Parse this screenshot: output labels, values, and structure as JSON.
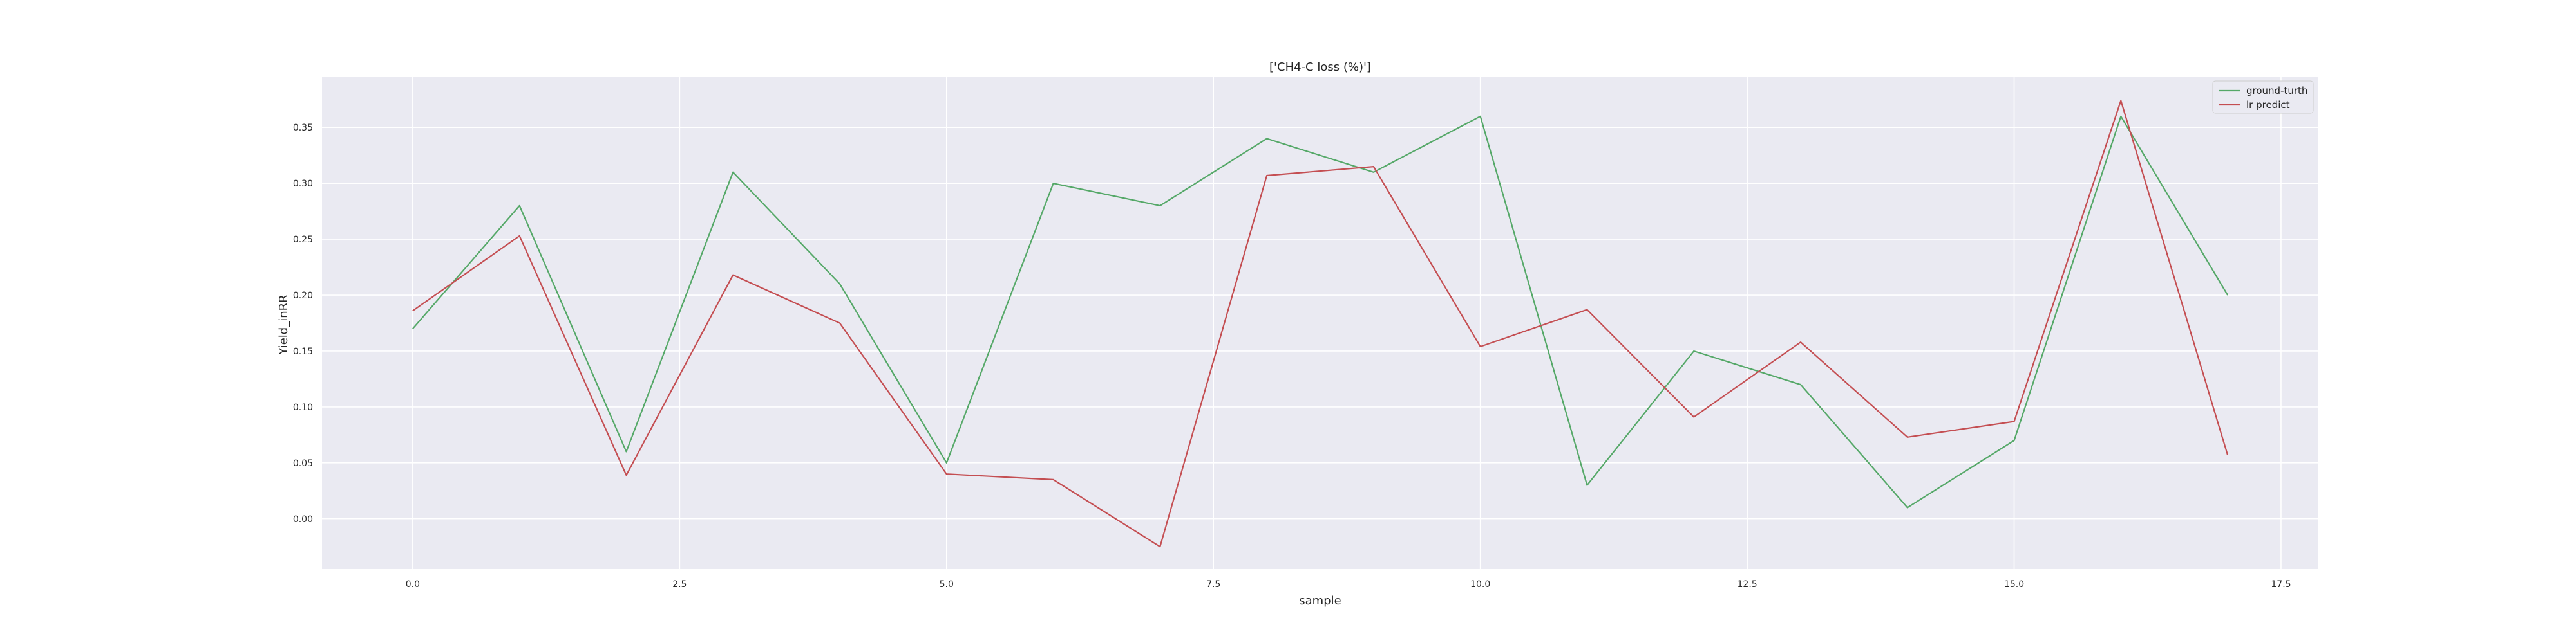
{
  "chart_data": {
    "type": "line",
    "title": "['CH4-C loss (%)']",
    "xlabel": "sample",
    "ylabel": "Yield_inRR",
    "xlim": [
      -0.85,
      17.85
    ],
    "ylim": [
      -0.045,
      0.395
    ],
    "x_ticks": [
      0.0,
      2.5,
      5.0,
      7.5,
      10.0,
      12.5,
      15.0,
      17.5
    ],
    "y_ticks": [
      0.0,
      0.05,
      0.1,
      0.15,
      0.2,
      0.25,
      0.3,
      0.35
    ],
    "grid": true,
    "legend_position": "top-right",
    "x": [
      0,
      1,
      2,
      3,
      4,
      5,
      6,
      7,
      8,
      9,
      10,
      11,
      12,
      13,
      14,
      15,
      16,
      17
    ],
    "series": [
      {
        "name": "ground-turth",
        "color": "#55a868",
        "values": [
          0.17,
          0.28,
          0.06,
          0.31,
          0.21,
          0.05,
          0.3,
          0.28,
          0.34,
          0.31,
          0.36,
          0.03,
          0.15,
          0.12,
          0.01,
          0.07,
          0.36,
          0.2
        ]
      },
      {
        "name": "lr predict",
        "color": "#c44e52",
        "values": [
          0.186,
          0.253,
          0.039,
          0.218,
          0.175,
          0.04,
          0.035,
          -0.025,
          0.307,
          0.315,
          0.154,
          0.187,
          0.091,
          0.158,
          0.073,
          0.087,
          0.374,
          0.057
        ]
      }
    ]
  }
}
